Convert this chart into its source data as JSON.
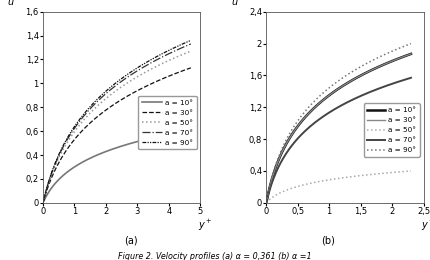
{
  "panel_a": {
    "xlim": [
      0,
      5
    ],
    "ylim": [
      0,
      1.6
    ],
    "xticks": [
      0,
      1,
      2,
      3,
      4,
      5
    ],
    "yticks": [
      0,
      0.2,
      0.4,
      0.6,
      0.8,
      1.0,
      1.2,
      1.4,
      1.6
    ],
    "ytick_labels": [
      "0",
      "0,2",
      "0,4",
      "0,6",
      "0,8",
      "1",
      "1,2",
      "1,4",
      "1,6"
    ],
    "xtick_labels": [
      "0",
      "1",
      "2",
      "3",
      "4",
      "5"
    ],
    "curves": [
      {
        "alpha": 10,
        "ls": "solid",
        "color": "#777777",
        "lw": 1.2,
        "ymax": 0.61,
        "k": 2.5,
        "label": "a = 10°"
      },
      {
        "alpha": 30,
        "ls": "dashed",
        "color": "#111111",
        "lw": 0.9,
        "ymax": 1.13,
        "k": 2.0,
        "label": "a = 30°"
      },
      {
        "alpha": 50,
        "ls": "dotted",
        "color": "#999999",
        "lw": 1.1,
        "ymax": 1.27,
        "k": 2.0,
        "label": "a = 50°"
      },
      {
        "alpha": 70,
        "ls": "dashdot",
        "color": "#333333",
        "lw": 0.9,
        "ymax": 1.33,
        "k": 2.0,
        "label": "a = 70°"
      },
      {
        "alpha": 90,
        "ls": [
          0,
          [
            3,
            1,
            1,
            1,
            1,
            1
          ]
        ],
        "color": "#111111",
        "lw": 0.9,
        "ymax": 1.36,
        "k": 2.0,
        "label": "a = 90°"
      }
    ]
  },
  "panel_b": {
    "xlim": [
      0,
      2.5
    ],
    "ylim": [
      0,
      2.4
    ],
    "xticks": [
      0,
      0.5,
      1.0,
      1.5,
      2.0,
      2.5
    ],
    "yticks": [
      0,
      0.4,
      0.8,
      1.2,
      1.6,
      2.0,
      2.4
    ],
    "xtick_labels": [
      "0",
      "0,5",
      "1",
      "1,5",
      "2",
      "2,5"
    ],
    "ytick_labels": [
      "0",
      "0,4",
      "0,8",
      "1,2",
      "1,6",
      "2",
      "2,4"
    ],
    "curves": [
      {
        "alpha": 10,
        "ls": "solid",
        "color": "#111111",
        "lw": 1.8,
        "ymax": 1.87,
        "k": 6.0,
        "label": "a = 10°"
      },
      {
        "alpha": 30,
        "ls": "solid",
        "color": "#888888",
        "lw": 1.0,
        "ymax": 1.87,
        "k": 6.0,
        "label": "a = 30°"
      },
      {
        "alpha": 50,
        "ls": "dotted",
        "color": "#aaaaaa",
        "lw": 1.1,
        "ymax": 0.4,
        "k": 6.0,
        "label": "a = 50°"
      },
      {
        "alpha": 70,
        "ls": "solid",
        "color": "#444444",
        "lw": 1.4,
        "ymax": 1.57,
        "k": 6.0,
        "label": "a = 70°"
      },
      {
        "alpha": 90,
        "ls": "dotted",
        "color": "#777777",
        "lw": 1.1,
        "ymax": 2.0,
        "k": 6.0,
        "label": "a = 90°"
      }
    ]
  },
  "label_a": "(a)",
  "label_b": "(b)",
  "fig_caption": "Figure 2. Velocity profiles (a) α = 0,361 (b) α =1"
}
